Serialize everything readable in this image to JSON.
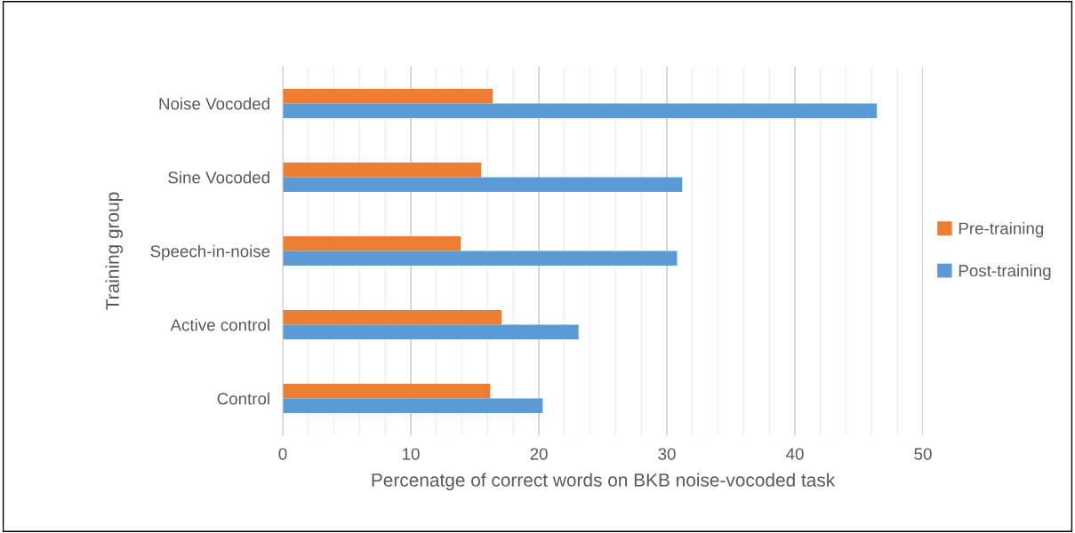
{
  "chart_data": {
    "type": "bar",
    "orientation": "horizontal",
    "xlabel": "Percenatge of correct words on BKB noise-vocoded task",
    "ylabel": "Training group",
    "categories": [
      "Noise Vocoded",
      "Sine Vocoded",
      "Speech-in-noise",
      "Active control",
      "Control"
    ],
    "series": [
      {
        "name": "Pre-training",
        "color": "#ed7d31",
        "values": [
          16.4,
          15.5,
          13.9,
          17.1,
          16.2
        ]
      },
      {
        "name": "Post-training",
        "color": "#5b9bd5",
        "values": [
          46.4,
          31.2,
          30.8,
          23.1,
          20.3
        ]
      }
    ],
    "xlim": [
      0,
      50
    ],
    "xticks": [
      0,
      {
        "value": 2,
        "label": null
      },
      {
        "value": 4,
        "label": null
      },
      {
        "value": 6,
        "label": null
      },
      {
        "value": 8,
        "label": null
      },
      10,
      {
        "value": 12,
        "label": null
      },
      {
        "value": 14,
        "label": null
      },
      {
        "value": 16,
        "label": null
      },
      {
        "value": 18,
        "label": null
      },
      20,
      {
        "value": 22,
        "label": null
      },
      {
        "value": 24,
        "label": null
      },
      {
        "value": 26,
        "label": null
      },
      {
        "value": 28,
        "label": null
      },
      30,
      {
        "value": 32,
        "label": null
      },
      {
        "value": 34,
        "label": null
      },
      {
        "value": 36,
        "label": null
      },
      {
        "value": 38,
        "label": null
      },
      40,
      {
        "value": 42,
        "label": null
      },
      {
        "value": 44,
        "label": null
      },
      {
        "value": 46,
        "label": null
      },
      {
        "value": 48,
        "label": null
      },
      50
    ],
    "grid": "x",
    "legend": "right"
  }
}
